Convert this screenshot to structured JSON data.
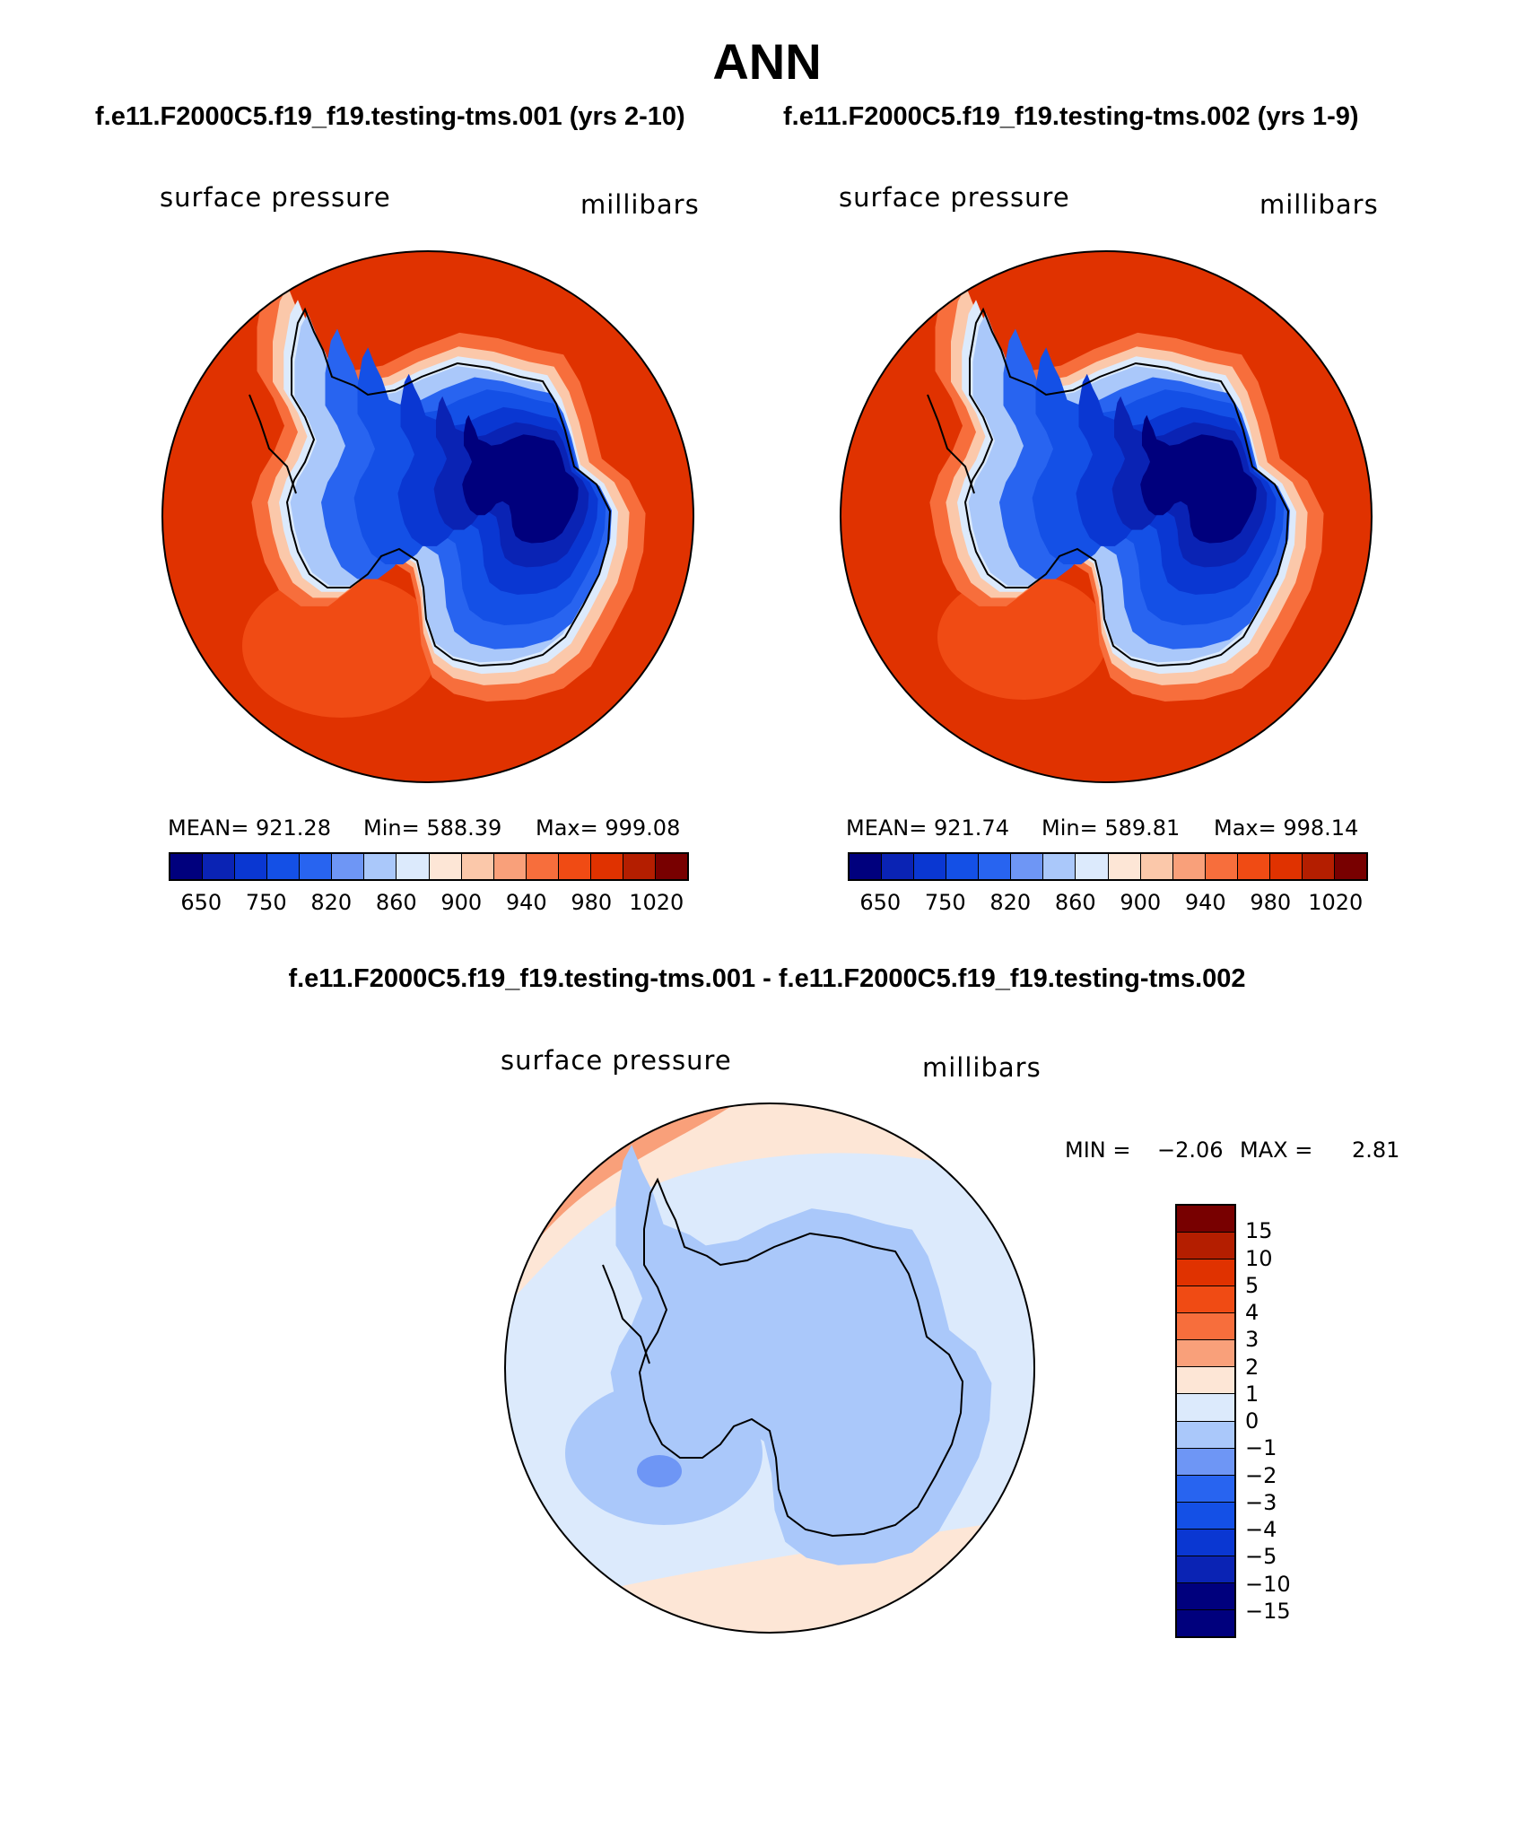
{
  "title": "ANN",
  "subtitle_left": "f.e11.F2000C5.f19_f19.testing-tms.001 (yrs 2-10)",
  "subtitle_right": "f.e11.F2000C5.f19_f19.testing-tms.002 (yrs 1-9)",
  "diff_title": "f.e11.F2000C5.f19_f19.testing-tms.001 - f.e11.F2000C5.f19_f19.testing-tms.002",
  "panels": [
    {
      "variable": "surface pressure",
      "units": "millibars",
      "mean_label": "MEAN= 921.28",
      "min_label": "Min= 588.39",
      "max_label": "Max= 999.08"
    },
    {
      "variable": "surface pressure",
      "units": "millibars",
      "mean_label": "MEAN= 921.74",
      "min_label": "Min= 589.81",
      "max_label": "Max= 998.14"
    }
  ],
  "diff_panel": {
    "variable": "surface pressure",
    "units": "millibars",
    "min_label": "MIN =",
    "min_value": "−2.06",
    "max_label": "MAX =",
    "max_value": "2.81"
  },
  "chart_data": [
    {
      "type": "heatmap",
      "projection": "south polar stereographic",
      "title": "surface pressure (millibars) - f.e11.F2000C5.f19_f19.testing-tms.001 (yrs 2-10)",
      "mean": 921.28,
      "min": 588.39,
      "max": 999.08,
      "colorbar_ticks": [
        "650",
        "750",
        "820",
        "860",
        "900",
        "940",
        "980",
        "1020"
      ],
      "levels": [
        600,
        650,
        700,
        750,
        800,
        820,
        840,
        860,
        880,
        900,
        920,
        940,
        960,
        980,
        1000,
        1020
      ],
      "colors": [
        "#00007d",
        "#0a23b4",
        "#0a37d2",
        "#1450e6",
        "#2864f0",
        "#6e96f5",
        "#aac8fa",
        "#dceafc",
        "#fde6d6",
        "#fbc8aa",
        "#f9a07a",
        "#f76e3c",
        "#f04b14",
        "#e03200",
        "#b41e00",
        "#780000"
      ]
    },
    {
      "type": "heatmap",
      "projection": "south polar stereographic",
      "title": "surface pressure (millibars) - f.e11.F2000C5.f19_f19.testing-tms.002 (yrs 1-9)",
      "mean": 921.74,
      "min": 589.81,
      "max": 998.14,
      "colorbar_ticks": [
        "650",
        "750",
        "820",
        "860",
        "900",
        "940",
        "980",
        "1020"
      ],
      "levels": [
        600,
        650,
        700,
        750,
        800,
        820,
        840,
        860,
        880,
        900,
        920,
        940,
        960,
        980,
        1000,
        1020
      ],
      "colors": [
        "#00007d",
        "#0a23b4",
        "#0a37d2",
        "#1450e6",
        "#2864f0",
        "#6e96f5",
        "#aac8fa",
        "#dceafc",
        "#fde6d6",
        "#fbc8aa",
        "#f9a07a",
        "#f76e3c",
        "#f04b14",
        "#e03200",
        "#b41e00",
        "#780000"
      ]
    },
    {
      "type": "heatmap",
      "projection": "south polar stereographic",
      "title": "surface pressure (millibars) difference 001 - 002",
      "min": -2.06,
      "max": 2.81,
      "colorbar_ticks": [
        "15",
        "10",
        "5",
        "4",
        "3",
        "2",
        "1",
        "0",
        "−1",
        "−2",
        "−3",
        "−4",
        "−5",
        "−10",
        "−15"
      ],
      "levels": [
        15,
        10,
        5,
        4,
        3,
        2,
        1,
        0,
        -1,
        -2,
        -3,
        -4,
        -5,
        -10,
        -15
      ],
      "colors": [
        "#780000",
        "#b41e00",
        "#e03200",
        "#f04b14",
        "#f76e3c",
        "#f9a07a",
        "#fde6d6",
        "#dceafc",
        "#aac8fa",
        "#6e96f5",
        "#2864f0",
        "#1450e6",
        "#0a37d2",
        "#0a23b4",
        "#00007d"
      ]
    }
  ]
}
